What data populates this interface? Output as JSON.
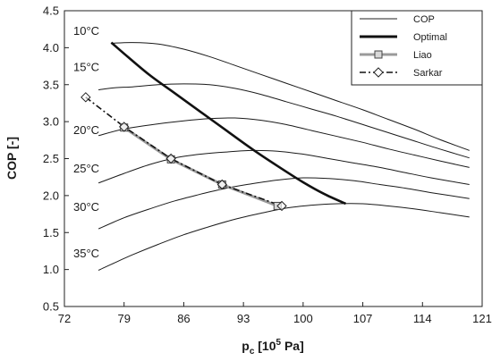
{
  "chart_data": {
    "type": "line",
    "xlabel": "p",
    "xlabel_sub": "c",
    "xlabel_unit_pre": " [10",
    "xlabel_unit_sup": "5",
    "xlabel_unit_post": " Pa]",
    "ylabel": "COP [-]",
    "xlim": [
      72,
      121
    ],
    "ylim": [
      0.5,
      4.5
    ],
    "xticks": [
      72,
      79,
      86,
      93,
      100,
      107,
      114,
      121
    ],
    "yticks": [
      0.5,
      1.0,
      1.5,
      2.0,
      2.5,
      3.0,
      3.5,
      4.0,
      4.5
    ],
    "xtick_labels": [
      "72",
      "79",
      "86",
      "93",
      "100",
      "107",
      "114",
      "121"
    ],
    "ytick_labels": [
      "0.5",
      "1.0",
      "1.5",
      "2.0",
      "2.5",
      "3.0",
      "3.5",
      "4.0",
      "4.5"
    ],
    "grid": "none",
    "legend_position": "top-right",
    "legend": [
      {
        "label": "COP",
        "style": "thin"
      },
      {
        "label": "Optimal",
        "style": "thick"
      },
      {
        "label": "Liao",
        "style": "gray-square"
      },
      {
        "label": "Sarkar",
        "style": "dashdot-diamond"
      }
    ],
    "series": [
      {
        "name": "COP",
        "temp_label": "10°C",
        "x": [
          77.5,
          80,
          83,
          86,
          89,
          92,
          95,
          98,
          101,
          104,
          107,
          110,
          113,
          116,
          119.5
        ],
        "y": [
          4.06,
          4.07,
          4.05,
          3.98,
          3.88,
          3.76,
          3.64,
          3.52,
          3.4,
          3.28,
          3.16,
          3.03,
          2.9,
          2.76,
          2.61
        ]
      },
      {
        "name": "COP",
        "temp_label": "15°C",
        "x": [
          76,
          78,
          80,
          83,
          86,
          89,
          92,
          95,
          98,
          101,
          104,
          107,
          110,
          113,
          116,
          119.5
        ],
        "y": [
          3.43,
          3.46,
          3.47,
          3.5,
          3.51,
          3.5,
          3.45,
          3.37,
          3.27,
          3.17,
          3.07,
          2.96,
          2.85,
          2.74,
          2.63,
          2.51
        ]
      },
      {
        "name": "COP",
        "temp_label": "20°C",
        "x": [
          76,
          79,
          83,
          86,
          89,
          92,
          95,
          98,
          101,
          104,
          107,
          110,
          113,
          116,
          119.5
        ],
        "y": [
          2.81,
          2.9,
          2.97,
          3.01,
          3.04,
          3.05,
          3.02,
          2.96,
          2.88,
          2.8,
          2.72,
          2.63,
          2.55,
          2.47,
          2.38
        ]
      },
      {
        "name": "COP",
        "temp_label": "25°C",
        "x": [
          76,
          79,
          82,
          85,
          88,
          91,
          94,
          97,
          100,
          103,
          106,
          109,
          112,
          115,
          119.5
        ],
        "y": [
          2.17,
          2.3,
          2.42,
          2.51,
          2.56,
          2.59,
          2.61,
          2.6,
          2.56,
          2.5,
          2.44,
          2.38,
          2.31,
          2.24,
          2.15
        ]
      },
      {
        "name": "COP",
        "temp_label": "30°C",
        "x": [
          76,
          79,
          82,
          85,
          88,
          91,
          94,
          97,
          100,
          103,
          106,
          109,
          112,
          115,
          119.5
        ],
        "y": [
          1.55,
          1.7,
          1.82,
          1.93,
          2.02,
          2.1,
          2.16,
          2.21,
          2.24,
          2.23,
          2.2,
          2.15,
          2.1,
          2.04,
          1.96
        ]
      },
      {
        "name": "COP",
        "temp_label": "35°C",
        "x": [
          76,
          77.5,
          80,
          83,
          86,
          89,
          92,
          95,
          98,
          101,
          104,
          107,
          110,
          113,
          116,
          119.5
        ],
        "y": [
          0.99,
          1.07,
          1.2,
          1.34,
          1.47,
          1.58,
          1.68,
          1.76,
          1.83,
          1.87,
          1.89,
          1.89,
          1.86,
          1.82,
          1.77,
          1.71
        ]
      },
      {
        "name": "Optimal",
        "x": [
          77.5,
          79.5,
          82,
          85,
          88,
          91,
          94,
          97,
          100,
          102.5,
          105
        ],
        "y": [
          4.07,
          3.87,
          3.63,
          3.38,
          3.13,
          2.88,
          2.63,
          2.4,
          2.18,
          2.02,
          1.89
        ]
      },
      {
        "name": "Liao",
        "x": [
          79,
          84.5,
          90.5,
          97
        ],
        "y": [
          2.92,
          2.49,
          2.15,
          1.86
        ]
      },
      {
        "name": "Sarkar",
        "x": [
          74.5,
          79,
          84.5,
          90.5,
          97.5
        ],
        "y": [
          3.33,
          2.93,
          2.5,
          2.15,
          1.86
        ]
      }
    ]
  }
}
